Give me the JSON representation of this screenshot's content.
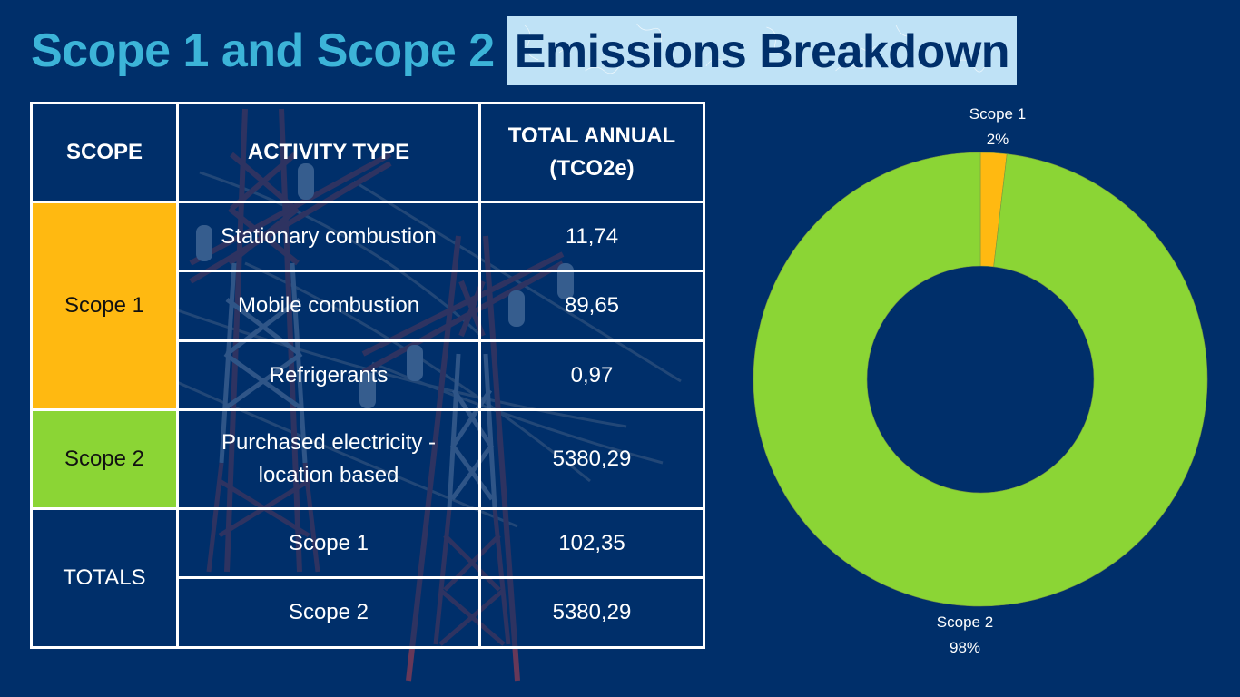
{
  "title": {
    "part1": "Scope 1 and Scope 2",
    "part2": "Emissions Breakdown"
  },
  "colors": {
    "background": "#002f6a",
    "title_accent": "#3cb4d8",
    "highlight_bg": "#bfe2f6",
    "scope1": "#ffb911",
    "scope2": "#8bd535"
  },
  "table": {
    "headers": [
      "SCOPE",
      "ACTIVITY TYPE",
      "TOTAL ANNUAL",
      "(TCO2e)"
    ],
    "scope1_label": "Scope 1",
    "scope2_label": "Scope 2",
    "totals_label": "TOTALS",
    "rows": [
      {
        "activity": "Stationary combustion",
        "value": "11,74"
      },
      {
        "activity": "Mobile combustion",
        "value": "89,65"
      },
      {
        "activity": "Refrigerants",
        "value": "0,97"
      },
      {
        "activity_line1": "Purchased electricity -",
        "activity_line2": "location based",
        "value": "5380,29"
      }
    ],
    "totals": [
      {
        "label": "Scope 1",
        "value": "102,35"
      },
      {
        "label": "Scope 2",
        "value": "5380,29"
      }
    ]
  },
  "chart_data": {
    "type": "pie",
    "donut": true,
    "title": "",
    "categories": [
      "Scope 1",
      "Scope 2"
    ],
    "values": [
      102.35,
      5380.29
    ],
    "percent_labels": [
      "2%",
      "98%"
    ],
    "colors": [
      "#ffb911",
      "#8bd535"
    ],
    "start_angle_deg": 0,
    "legend": "none",
    "labels": [
      {
        "name": "Scope 1",
        "pct": "2%",
        "position": "top"
      },
      {
        "name": "Scope 2",
        "pct": "98%",
        "position": "bottom"
      }
    ]
  }
}
